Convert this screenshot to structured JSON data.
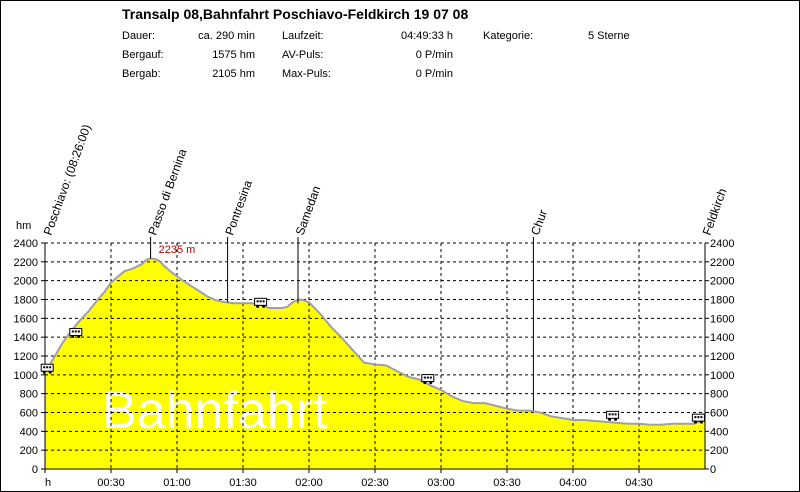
{
  "header": {
    "title": "Transalp 08,Bahnfahrt Poschiavo-Feldkirch 19 07 08",
    "rows": [
      {
        "label": "Dauer:",
        "value": "ca. 290 min",
        "label2": "Laufzeit:",
        "value2": "04:49:33 h",
        "label3": "Kategorie:",
        "value3": "5 Sterne"
      },
      {
        "label": "Bergauf:",
        "value": "1575 hm",
        "label2": "AV-Puls:",
        "value2": "0 P/min"
      },
      {
        "label": "Bergab:",
        "value": "2105 hm",
        "label2": "Max-Puls:",
        "value2": "0 P/min"
      }
    ]
  },
  "chart_data": {
    "type": "area",
    "ylabel": "hm",
    "xlabel": "h",
    "ylim": [
      0,
      2400
    ],
    "yticks": [
      0,
      200,
      400,
      600,
      800,
      1000,
      1200,
      1400,
      1600,
      1800,
      2000,
      2200,
      2400
    ],
    "xlim_minutes": [
      0,
      300
    ],
    "xticks": [
      {
        "label": "h",
        "minutes": 0
      },
      {
        "label": "00:30",
        "minutes": 30
      },
      {
        "label": "01:00",
        "minutes": 60
      },
      {
        "label": "01:30",
        "minutes": 90
      },
      {
        "label": "02:00",
        "minutes": 120
      },
      {
        "label": "02:30",
        "minutes": 150
      },
      {
        "label": "03:00",
        "minutes": 180
      },
      {
        "label": "03:30",
        "minutes": 210
      },
      {
        "label": "04:00",
        "minutes": 240
      },
      {
        "label": "04:30",
        "minutes": 270
      }
    ],
    "grid": true,
    "fill_color": "#ffff00",
    "line_color": "#a0a0a0",
    "watermark": "Bahnfahrt",
    "max_label": "2235 m",
    "series": [
      {
        "x": [
          0,
          2,
          5,
          8,
          12,
          16,
          20,
          24,
          27,
          30,
          33,
          36,
          40,
          44,
          46,
          48,
          50,
          52,
          54,
          56,
          58,
          62,
          66,
          70,
          74,
          78,
          82,
          86,
          90,
          94,
          98,
          102,
          105,
          108,
          110,
          112,
          114,
          116,
          118,
          120,
          125,
          130,
          135,
          140,
          145,
          150,
          155,
          160,
          165,
          170,
          175,
          180,
          185,
          190,
          195,
          200,
          205,
          210,
          215,
          220,
          225,
          230,
          235,
          240,
          245,
          250,
          255,
          260,
          265,
          270,
          275,
          280,
          285,
          290,
          295,
          300
        ],
        "y": [
          1060,
          1100,
          1220,
          1340,
          1470,
          1580,
          1680,
          1800,
          1880,
          1980,
          2040,
          2100,
          2130,
          2175,
          2220,
          2235,
          2230,
          2210,
          2160,
          2120,
          2080,
          2010,
          1950,
          1890,
          1830,
          1790,
          1770,
          1760,
          1760,
          1760,
          1740,
          1710,
          1710,
          1710,
          1720,
          1760,
          1790,
          1800,
          1790,
          1770,
          1650,
          1510,
          1390,
          1260,
          1130,
          1110,
          1100,
          1040,
          980,
          950,
          890,
          840,
          770,
          720,
          700,
          700,
          670,
          640,
          620,
          620,
          600,
          560,
          540,
          520,
          520,
          510,
          500,
          490,
          480,
          480,
          470,
          470,
          480,
          480,
          480,
          530
        ]
      }
    ],
    "markers": [
      {
        "label": "Poschiavo: (08:26:00)",
        "minutes": 0,
        "elevation": 1060
      },
      {
        "label": "Passo di Bernina",
        "minutes": 48,
        "elevation": 2235
      },
      {
        "label": "Pontresina",
        "minutes": 83,
        "elevation": 1770
      },
      {
        "label": "Samedan",
        "minutes": 115,
        "elevation": 1760
      },
      {
        "label": "Chur",
        "minutes": 222,
        "elevation": 620
      },
      {
        "label": "Feldkirch",
        "minutes": 300,
        "elevation": 530
      }
    ],
    "train_icons": [
      {
        "minutes": 1,
        "elevation": 1070
      },
      {
        "minutes": 14,
        "elevation": 1450
      },
      {
        "minutes": 98,
        "elevation": 1770
      },
      {
        "minutes": 174,
        "elevation": 960
      },
      {
        "minutes": 258,
        "elevation": 570
      },
      {
        "minutes": 297,
        "elevation": 540
      }
    ]
  }
}
